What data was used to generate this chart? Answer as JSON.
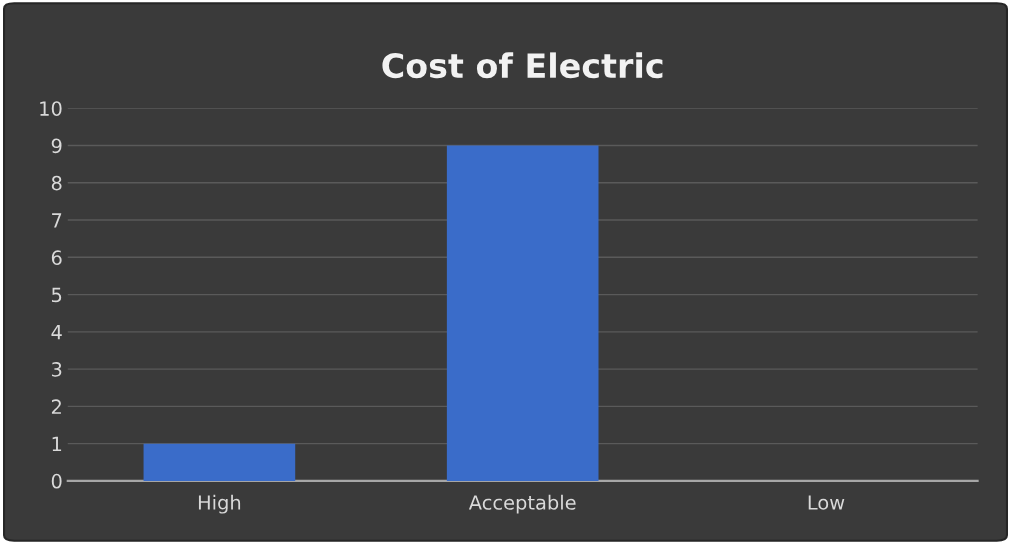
{
  "chart_data": {
    "type": "bar",
    "title": "Cost of Electric",
    "categories": [
      "High",
      "Acceptable",
      "Low"
    ],
    "values": [
      1,
      9,
      0
    ],
    "color": "#3a6cc9",
    "ylim": [
      0,
      10
    ],
    "yticks": [
      0,
      1,
      2,
      3,
      4,
      5,
      6,
      7,
      8,
      9,
      10
    ],
    "grid": "y"
  }
}
